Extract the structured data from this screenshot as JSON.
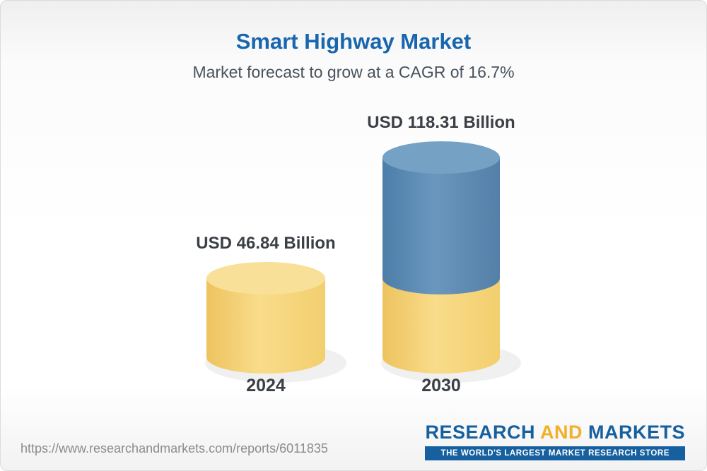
{
  "header": {
    "title": "Smart Highway Market",
    "subtitle": "Market forecast to grow at a CAGR of 16.7%"
  },
  "chart_data": {
    "type": "bar",
    "title": "Smart Highway Market",
    "subtitle": "Market forecast to grow at a CAGR of 16.7%",
    "cagr_percent": 16.7,
    "unit": "USD Billion",
    "categories": [
      "2024",
      "2030"
    ],
    "values": [
      46.84,
      118.31
    ],
    "value_labels": [
      "USD 46.84 Billion",
      "USD 118.31 Billion"
    ],
    "series_note": "2030 cylinder shows the 2024 base amount in gold with the growth portion in blue stacked above it",
    "ylim": [
      0,
      130
    ],
    "legend": "none",
    "grid": false
  },
  "colors": {
    "title_blue": "#1766AE",
    "subtitle_gray": "#47525C",
    "bar_gold": "#F7D77E",
    "bar_blue": "#5E8DB4",
    "logo_blue": "#16609F",
    "logo_yellow": "#F1B02A"
  },
  "footer": {
    "url": "https://www.researchandmarkets.com/reports/6011835",
    "logo": {
      "research": "RESEARCH",
      "and": "AND",
      "markets": "MARKETS",
      "tagline": "THE WORLD'S LARGEST MARKET RESEARCH STORE"
    }
  }
}
